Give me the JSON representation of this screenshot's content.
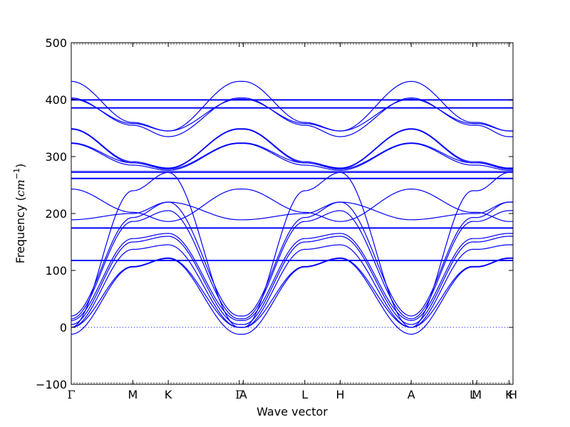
{
  "chart_data": {
    "type": "line",
    "title": "",
    "xlabel": "Wave vector",
    "ylabel_text": "Frequency (",
    "ylabel_unit": "cm",
    "ylabel_sup": "−1",
    "ylabel_close": ")",
    "ylim": [
      -100,
      500
    ],
    "yticks": [
      -100,
      0,
      100,
      200,
      300,
      400,
      500
    ],
    "xlim": [
      0,
      7.746
    ],
    "grid": false,
    "legend": "none",
    "line_color": "#0000ff",
    "zero_line": true,
    "high_symmetry_points": [
      {
        "label": "Γ",
        "x": 0
      },
      {
        "label": "M",
        "x": 1.079
      },
      {
        "label": "K",
        "x": 1.701
      },
      {
        "label": "Γ",
        "x": 2.946
      },
      {
        "label": "A",
        "x": 3.016
      },
      {
        "label": "L",
        "x": 4.095
      },
      {
        "label": "H",
        "x": 4.717
      },
      {
        "label": "A",
        "x": 5.962
      },
      {
        "label": "L",
        "x": 7.041
      },
      {
        "label": "M",
        "x": 7.111
      },
      {
        "label": "K",
        "x": 7.676
      },
      {
        "label": "H",
        "x": 7.746
      }
    ],
    "series": [
      {
        "values_at_points": [
          -12,
          106,
          121,
          -12,
          -12,
          106,
          121,
          -12,
          106,
          106,
          121,
          121
        ]
      },
      {
        "values_at_points": [
          0,
          107,
          122,
          0,
          0,
          107,
          122,
          0,
          107,
          107,
          122,
          122
        ]
      },
      {
        "values_at_points": [
          117,
          117,
          117,
          117,
          117,
          117,
          117,
          117,
          117,
          117,
          117,
          117
        ]
      },
      {
        "values_at_points": [
          118,
          118,
          118,
          118,
          118,
          118,
          118,
          118,
          118,
          118,
          118,
          118
        ]
      },
      {
        "values_at_points": [
          0,
          137,
          145,
          0,
          0,
          137,
          145,
          0,
          137,
          137,
          145,
          145
        ]
      },
      {
        "values_at_points": [
          5,
          150,
          160,
          5,
          5,
          150,
          160,
          5,
          150,
          150,
          160,
          160
        ]
      },
      {
        "values_at_points": [
          12,
          156,
          165,
          12,
          12,
          156,
          165,
          12,
          156,
          156,
          165,
          165
        ]
      },
      {
        "values_at_points": [
          174,
          174,
          174,
          174,
          174,
          174,
          174,
          174,
          174,
          174,
          174,
          174
        ]
      },
      {
        "values_at_points": [
          175,
          175,
          175,
          175,
          175,
          175,
          175,
          175,
          175,
          175,
          175,
          175
        ]
      },
      {
        "values_at_points": [
          15,
          186,
          205,
          15,
          15,
          186,
          205,
          15,
          186,
          186,
          205,
          205
        ]
      },
      {
        "values_at_points": [
          20,
          193,
          220,
          20,
          20,
          193,
          220,
          20,
          193,
          193,
          220,
          220
        ]
      },
      {
        "values_at_points": [
          189,
          200,
          220,
          189,
          189,
          200,
          220,
          189,
          200,
          200,
          220,
          220
        ]
      },
      {
        "values_at_points": [
          243,
          202,
          186,
          243,
          243,
          202,
          186,
          243,
          202,
          202,
          186,
          186
        ]
      },
      {
        "values_at_points": [
          0,
          240,
          272,
          0,
          0,
          240,
          272,
          0,
          240,
          240,
          272,
          272
        ]
      },
      {
        "values_at_points": [
          261,
          261,
          261,
          261,
          261,
          261,
          261,
          261,
          261,
          261,
          261,
          261
        ]
      },
      {
        "values_at_points": [
          262,
          262,
          262,
          262,
          262,
          262,
          262,
          262,
          262,
          262,
          262,
          262
        ]
      },
      {
        "values_at_points": [
          272,
          272,
          272,
          272,
          272,
          272,
          272,
          272,
          272,
          272,
          272,
          272
        ]
      },
      {
        "values_at_points": [
          274,
          274,
          274,
          274,
          274,
          274,
          274,
          274,
          274,
          274,
          274,
          274
        ]
      },
      {
        "values_at_points": [
          323,
          285,
          276,
          323,
          323,
          285,
          276,
          323,
          285,
          285,
          276,
          276
        ]
      },
      {
        "values_at_points": [
          324,
          289,
          278,
          324,
          324,
          289,
          278,
          324,
          289,
          289,
          278,
          278
        ]
      },
      {
        "values_at_points": [
          348,
          289,
          279,
          348,
          348,
          289,
          279,
          348,
          289,
          289,
          279,
          279
        ]
      },
      {
        "values_at_points": [
          349,
          291,
          280,
          349,
          349,
          291,
          280,
          349,
          291,
          291,
          280,
          280
        ]
      },
      {
        "values_at_points": [
          385,
          385,
          385,
          385,
          385,
          385,
          385,
          385,
          385,
          385,
          385,
          385
        ]
      },
      {
        "values_at_points": [
          386,
          386,
          386,
          386,
          386,
          386,
          386,
          386,
          386,
          386,
          386,
          386
        ]
      },
      {
        "values_at_points": [
          399,
          399,
          399,
          399,
          399,
          399,
          399,
          399,
          399,
          399,
          399,
          399
        ]
      },
      {
        "values_at_points": [
          400,
          400,
          400,
          400,
          400,
          400,
          400,
          400,
          400,
          400,
          400,
          400
        ]
      },
      {
        "values_at_points": [
          401,
          358,
          345,
          401,
          401,
          358,
          345,
          401,
          358,
          358,
          345,
          345
        ]
      },
      {
        "values_at_points": [
          403,
          355,
          335,
          403,
          403,
          355,
          335,
          403,
          355,
          355,
          335,
          335
        ]
      },
      {
        "values_at_points": [
          432,
          360,
          345,
          432,
          432,
          360,
          345,
          432,
          360,
          360,
          345,
          345
        ]
      }
    ]
  }
}
